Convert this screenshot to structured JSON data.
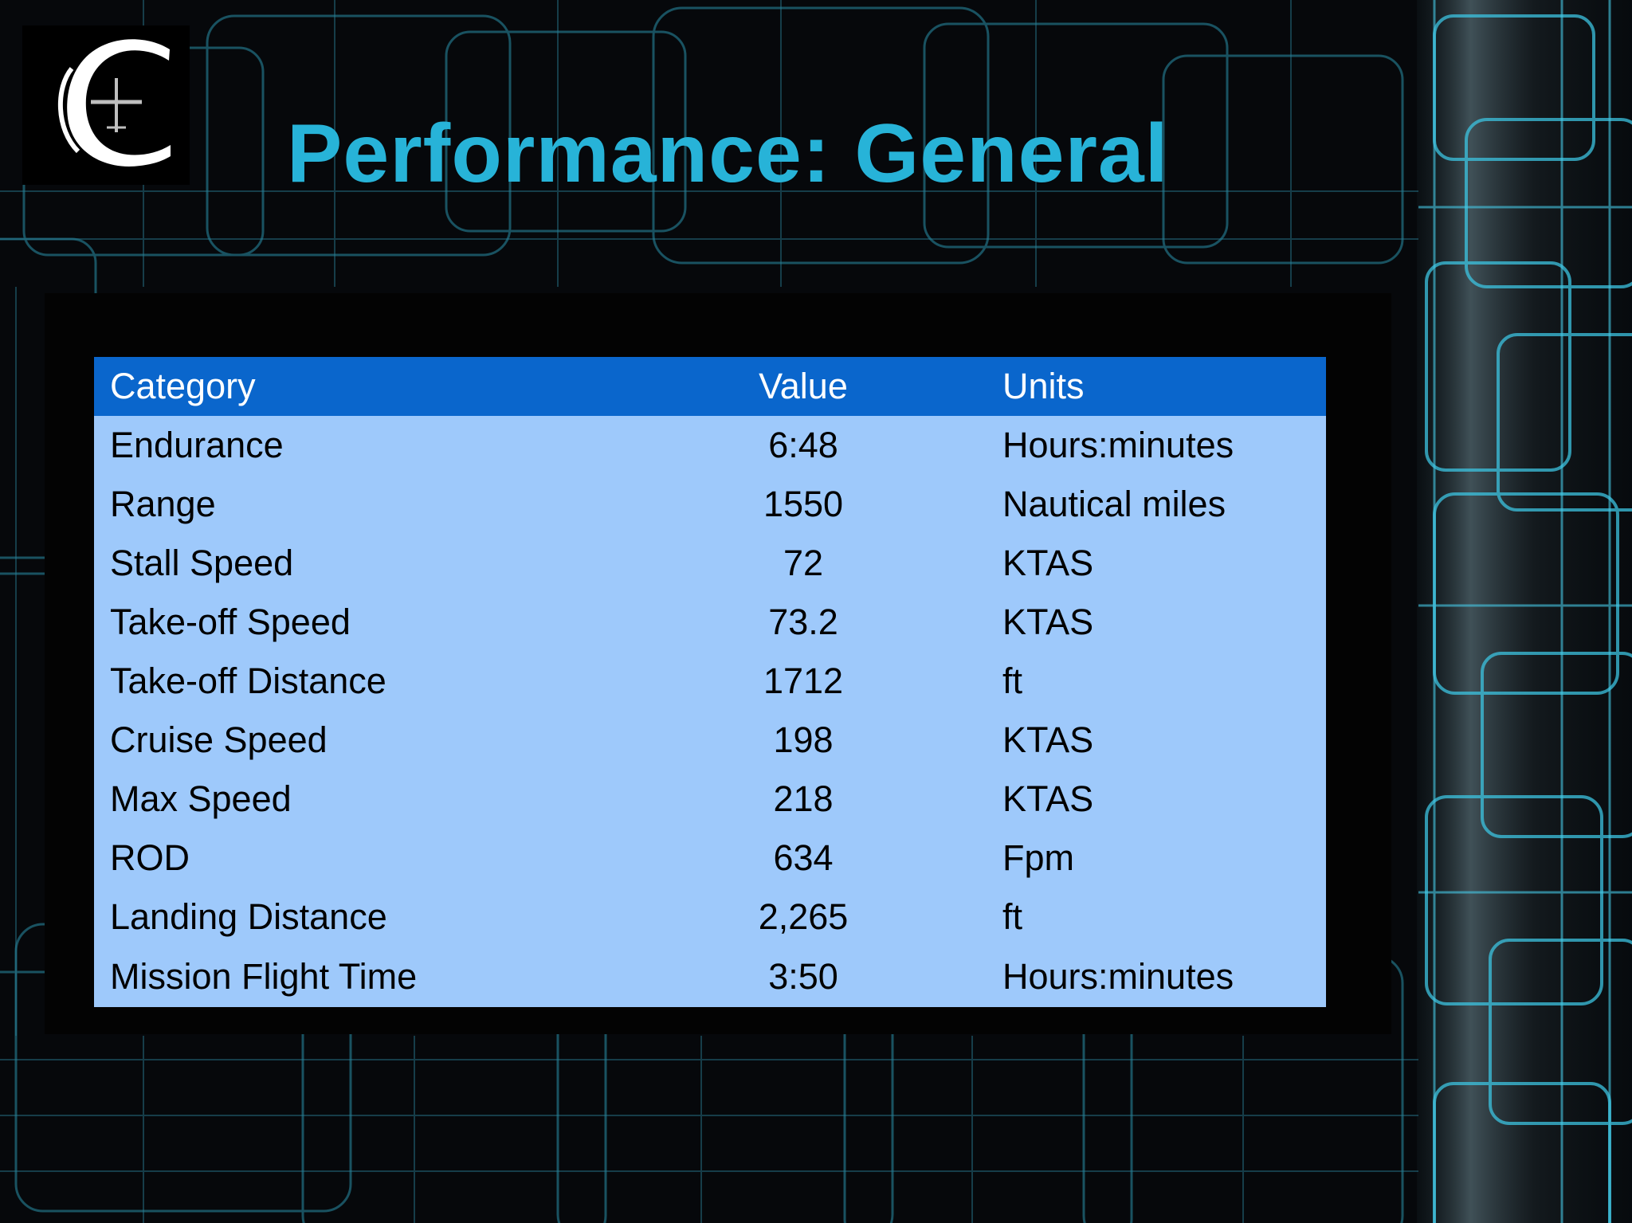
{
  "slide": {
    "title": "Performance: General",
    "logo_icon": "crest-c-airplane-icon",
    "colors": {
      "title": "#27b3d8",
      "header_bg": "#0a66cc",
      "body_bg": "#9ec9fb",
      "background": "#06080b",
      "circuit_lines": "#2fb8d6"
    }
  },
  "table": {
    "headers": [
      "Category",
      "Value",
      "Units"
    ],
    "rows": [
      {
        "category": "Endurance",
        "value": "6:48",
        "units": "Hours:minutes"
      },
      {
        "category": "Range",
        "value": "1550",
        "units": "Nautical miles"
      },
      {
        "category": "Stall Speed",
        "value": "72",
        "units": "KTAS"
      },
      {
        "category": "Take-off Speed",
        "value": "73.2",
        "units": "KTAS"
      },
      {
        "category": "Take-off Distance",
        "value": "1712",
        "units": "ft"
      },
      {
        "category": "Cruise Speed",
        "value": "198",
        "units": "KTAS"
      },
      {
        "category": "Max Speed",
        "value": "218",
        "units": "KTAS"
      },
      {
        "category": "ROD",
        "value": "634",
        "units": "Fpm"
      },
      {
        "category": "Landing Distance",
        "value": "2,265",
        "units": "ft"
      },
      {
        "category": "Mission Flight Time",
        "value": "3:50",
        "units": "Hours:minutes"
      }
    ]
  }
}
